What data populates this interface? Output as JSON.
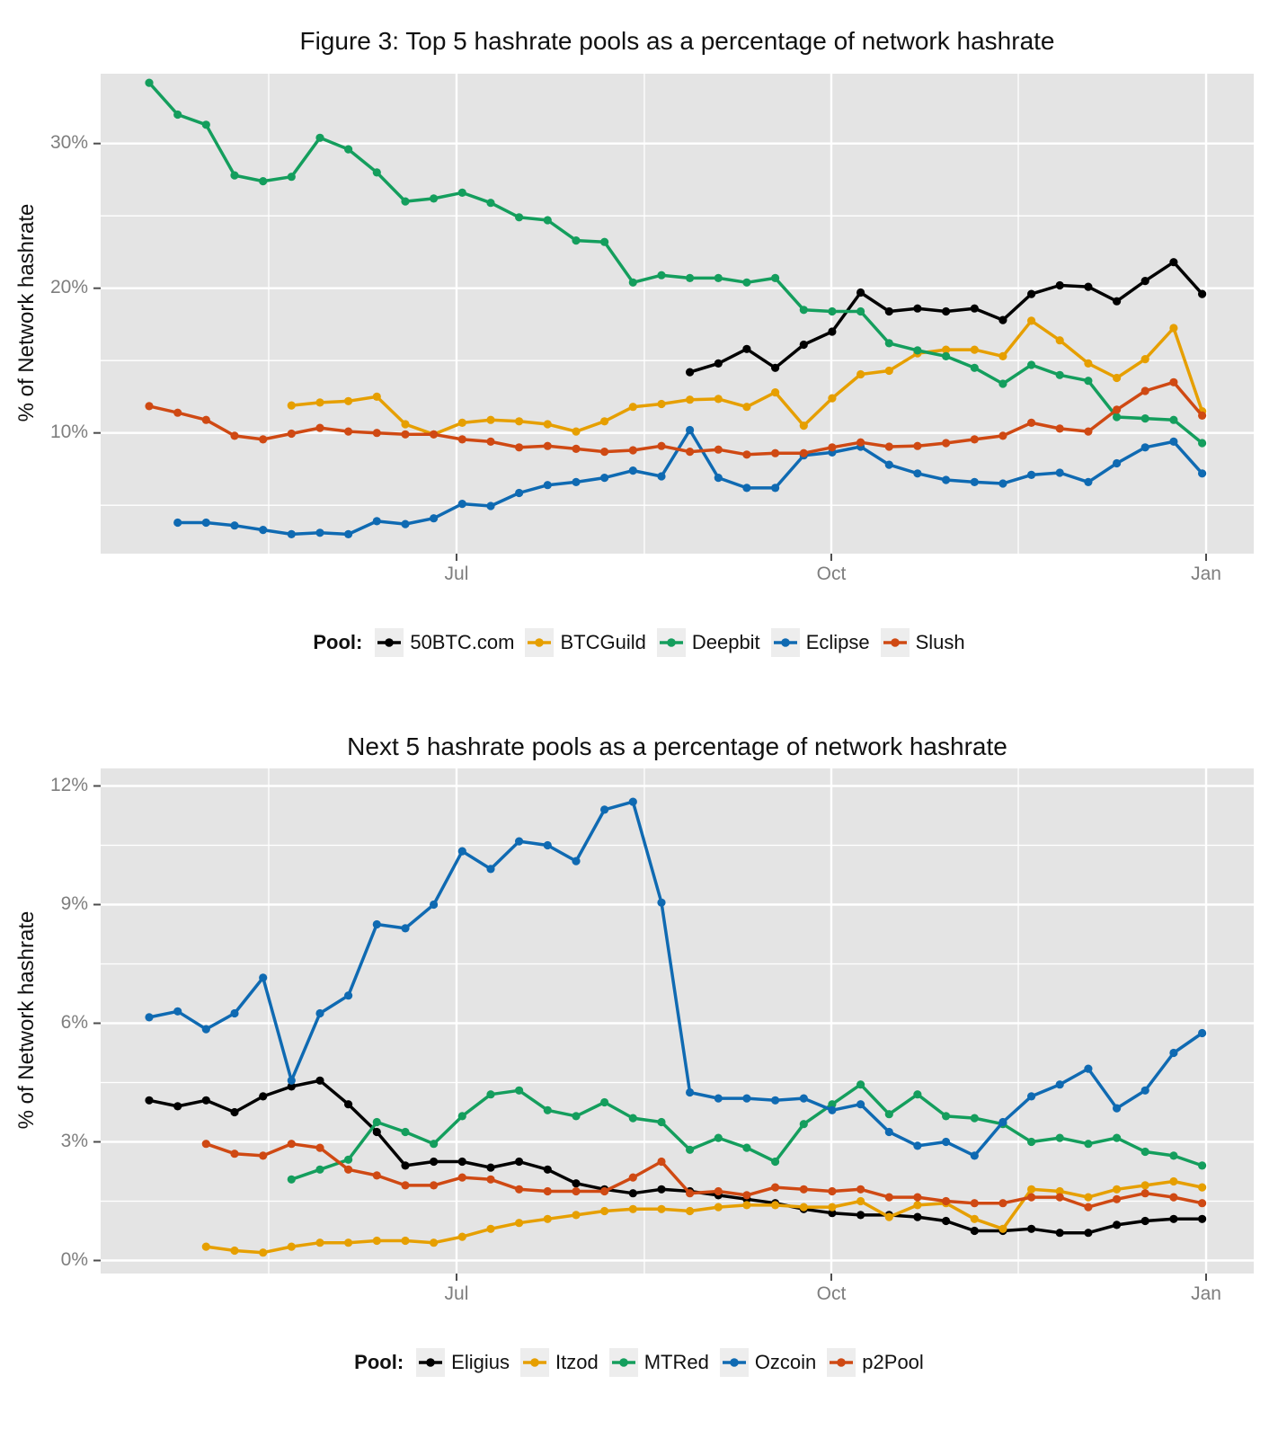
{
  "page_bg": "#ffffff",
  "panel_bg": "#e4e4e4",
  "grid_color": "#ffffff",
  "tick_text_color": "#7e7e7e",
  "tick_mark_color": "#4d4d4d",
  "legend_key_bg": "#ededed",
  "chart_data": [
    {
      "type": "line",
      "title": "Figure 3: Top 5 hashrate pools as a percentage of network hashrate",
      "y_axis_label": "% of Network hashrate",
      "legend_label": "Pool:",
      "x_ticks": [
        {
          "label": "Jul",
          "week": 10.8
        },
        {
          "label": "Oct",
          "week": 23.97
        },
        {
          "label": "Jan",
          "week": 37.14
        }
      ],
      "x_minor_weeks": [
        4.2,
        17.4,
        30.54
      ],
      "y_ticks": [
        {
          "label": "10%",
          "value": 10
        },
        {
          "label": "20%",
          "value": 20
        },
        {
          "label": "30%",
          "value": 30
        }
      ],
      "y_minor": [
        5,
        15,
        25
      ],
      "ylim": [
        1.66,
        34.8
      ],
      "weeks_total": 37,
      "grid": true,
      "legend_position": "bottom",
      "series": [
        {
          "name": "50BTC.com",
          "color": "#000000",
          "start_week": 19,
          "values": [
            14.2,
            14.8,
            15.8,
            14.5,
            16.1,
            17.0,
            19.7,
            18.4,
            18.6,
            18.4,
            18.6,
            17.8,
            19.6,
            20.2,
            20.1,
            19.1,
            20.5,
            21.8,
            19.6
          ]
        },
        {
          "name": "BTCGuild",
          "color": "#E69F00",
          "start_week": 5,
          "values": [
            11.9,
            12.1,
            12.2,
            12.5,
            10.6,
            9.9,
            10.7,
            10.9,
            10.8,
            10.6,
            10.1,
            10.8,
            11.8,
            12.0,
            12.3,
            12.35,
            11.8,
            12.8,
            10.5,
            12.4,
            14.05,
            14.3,
            15.5,
            15.75,
            15.75,
            15.3,
            17.75,
            16.4,
            14.8,
            13.8,
            15.1,
            17.25,
            11.5
          ]
        },
        {
          "name": "Deepbit",
          "color": "#149E5D",
          "start_week": 0,
          "values": [
            34.2,
            32.0,
            31.3,
            27.8,
            27.4,
            27.7,
            30.4,
            29.6,
            28.0,
            26.0,
            26.2,
            26.6,
            25.9,
            24.9,
            24.7,
            23.3,
            23.2,
            20.4,
            20.9,
            20.7,
            20.7,
            20.4,
            20.7,
            18.5,
            18.4,
            18.4,
            16.2,
            15.7,
            15.3,
            14.5,
            13.4,
            14.7,
            14.0,
            13.6,
            11.1,
            11.0,
            10.9,
            9.3
          ]
        },
        {
          "name": "Eclipse",
          "color": "#0F6AB2",
          "start_week": 1,
          "values": [
            3.8,
            3.8,
            3.6,
            3.3,
            3.0,
            3.1,
            3.0,
            3.9,
            3.7,
            4.1,
            5.1,
            4.95,
            5.85,
            6.4,
            6.6,
            6.9,
            7.4,
            7.0,
            10.2,
            6.9,
            6.2,
            6.2,
            8.45,
            8.65,
            9.05,
            7.8,
            7.2,
            6.75,
            6.6,
            6.5,
            7.1,
            7.25,
            6.6,
            7.9,
            9.0,
            9.4,
            7.2
          ]
        },
        {
          "name": "Slush",
          "color": "#CF4913",
          "start_week": 0,
          "values": [
            11.85,
            11.4,
            10.9,
            9.8,
            9.55,
            9.95,
            10.35,
            10.1,
            10.0,
            9.9,
            9.9,
            9.55,
            9.4,
            9.0,
            9.1,
            8.9,
            8.7,
            8.8,
            9.1,
            8.7,
            8.85,
            8.5,
            8.6,
            8.6,
            9.0,
            9.35,
            9.05,
            9.1,
            9.3,
            9.55,
            9.8,
            10.7,
            10.3,
            10.1,
            11.6,
            12.9,
            13.5,
            11.2
          ]
        }
      ]
    },
    {
      "type": "line",
      "title": "Next 5 hashrate pools as a percentage of network hashrate",
      "y_axis_label": "% of Network hashrate",
      "legend_label": "Pool:",
      "x_ticks": [
        {
          "label": "Jul",
          "week": 10.8
        },
        {
          "label": "Oct",
          "week": 23.97
        },
        {
          "label": "Jan",
          "week": 37.14
        }
      ],
      "x_minor_weeks": [
        4.2,
        17.4,
        30.54
      ],
      "y_ticks": [
        {
          "label": "0%",
          "value": 0
        },
        {
          "label": "3%",
          "value": 3
        },
        {
          "label": "6%",
          "value": 6
        },
        {
          "label": "9%",
          "value": 9
        },
        {
          "label": "12%",
          "value": 12
        }
      ],
      "y_minor": [
        1.5,
        4.5,
        7.5,
        10.5
      ],
      "ylim": [
        -0.33,
        12.44
      ],
      "weeks_total": 37,
      "grid": true,
      "legend_position": "bottom",
      "series": [
        {
          "name": "Eligius",
          "color": "#000000",
          "start_week": 0,
          "values": [
            4.05,
            3.9,
            4.05,
            3.75,
            4.15,
            4.4,
            4.55,
            3.95,
            3.25,
            2.4,
            2.5,
            2.5,
            2.35,
            2.5,
            2.3,
            1.95,
            1.8,
            1.7,
            1.8,
            1.75,
            1.65,
            1.55,
            1.45,
            1.3,
            1.2,
            1.15,
            1.15,
            1.1,
            1.0,
            0.75,
            0.75,
            0.8,
            0.7,
            0.7,
            0.9,
            1.0,
            1.05,
            1.05
          ]
        },
        {
          "name": "Itzod",
          "color": "#E69F00",
          "start_week": 2,
          "values": [
            0.35,
            0.25,
            0.2,
            0.35,
            0.45,
            0.45,
            0.5,
            0.5,
            0.45,
            0.6,
            0.8,
            0.95,
            1.05,
            1.15,
            1.25,
            1.3,
            1.3,
            1.25,
            1.35,
            1.4,
            1.4,
            1.35,
            1.35,
            1.5,
            1.1,
            1.4,
            1.45,
            1.05,
            0.8,
            1.8,
            1.75,
            1.6,
            1.8,
            1.9,
            2.0,
            1.85
          ]
        },
        {
          "name": "MTRed",
          "color": "#149E5D",
          "start_week": 5,
          "values": [
            2.05,
            2.3,
            2.55,
            3.5,
            3.25,
            2.95,
            3.65,
            4.2,
            4.3,
            3.8,
            3.65,
            4.0,
            3.6,
            3.5,
            2.8,
            3.1,
            2.85,
            2.5,
            3.45,
            3.95,
            4.45,
            3.7,
            4.2,
            3.65,
            3.6,
            3.45,
            3.0,
            3.1,
            2.95,
            3.1,
            2.75,
            2.65,
            2.4
          ]
        },
        {
          "name": "Ozcoin",
          "color": "#0F6AB2",
          "start_week": 0,
          "values": [
            6.15,
            6.3,
            5.85,
            6.25,
            7.15,
            4.55,
            6.25,
            6.7,
            8.5,
            8.4,
            9.0,
            10.35,
            9.9,
            10.6,
            10.5,
            10.1,
            11.4,
            11.6,
            9.05,
            4.25,
            4.1,
            4.1,
            4.05,
            4.1,
            3.8,
            3.95,
            3.25,
            2.9,
            3.0,
            2.65,
            3.5,
            4.15,
            4.45,
            4.85,
            3.85,
            4.3,
            5.25,
            5.75
          ]
        },
        {
          "name": "p2Pool",
          "color": "#CF4913",
          "start_week": 2,
          "values": [
            2.95,
            2.7,
            2.65,
            2.95,
            2.85,
            2.3,
            2.15,
            1.9,
            1.9,
            2.1,
            2.05,
            1.8,
            1.75,
            1.75,
            1.75,
            2.1,
            2.5,
            1.7,
            1.75,
            1.65,
            1.85,
            1.8,
            1.75,
            1.8,
            1.6,
            1.6,
            1.5,
            1.45,
            1.45,
            1.6,
            1.6,
            1.35,
            1.55,
            1.7,
            1.6,
            1.45
          ]
        }
      ]
    }
  ]
}
